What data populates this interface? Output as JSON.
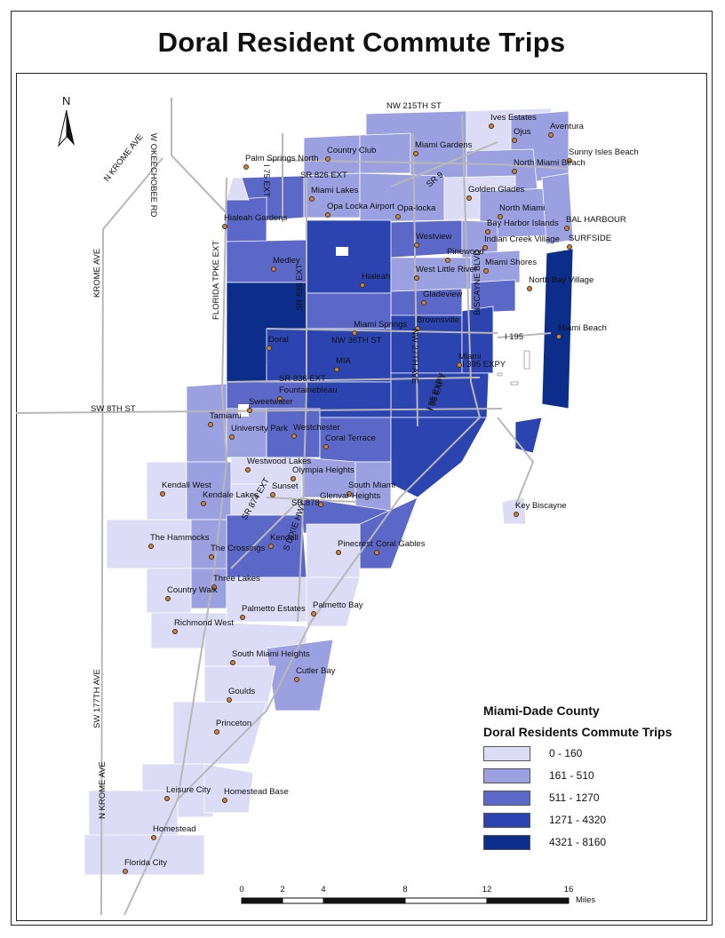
{
  "title": "Doral Resident Commute Trips",
  "north_label": "N",
  "legend": {
    "title1": "Miami-Dade County",
    "title2": "Doral Residents Commute Trips",
    "classes": [
      {
        "label": "0 - 160",
        "color": "#dcdcf6"
      },
      {
        "label": "161 - 510",
        "color": "#9aa0e0"
      },
      {
        "label": "511 - 1270",
        "color": "#5c68c8"
      },
      {
        "label": "1271 - 4320",
        "color": "#2b44b0"
      },
      {
        "label": "4321 - 8160",
        "color": "#0c2e8a"
      }
    ]
  },
  "scale_bar": {
    "ticks": [
      "0",
      "2",
      "4",
      "8",
      "12",
      "16"
    ],
    "unit": "Miles"
  },
  "places": [
    "Palm Springs North",
    "Country Club",
    "Miami Gardens",
    "Ives Estates",
    "Ojus",
    "Aventura",
    "Sunny Isles Beach",
    "North Miami Beach",
    "Miami Lakes",
    "Golden Glades",
    "Hialeah Gardens",
    "Opa Locka Airport",
    "Opa-locka",
    "North Miami",
    "BAL HARBOUR",
    "Bay Harbor Islands",
    "Indian Creek Village",
    "SURFSIDE",
    "Westview",
    "Pinewood",
    "Medley",
    "West Little River",
    "Miami Shores",
    "Hialeah",
    "North Bay Village",
    "Gladeview",
    "Miami Springs",
    "Brownsville",
    "Doral",
    "Miami Beach",
    "MIA",
    "Miami",
    "Fountainebleau",
    "Sweetwater",
    "Tamiami",
    "University Park",
    "Westchester",
    "Coral Terrace",
    "Westwood Lakes",
    "Olympia Heights",
    "Kendall West",
    "Kendale Lakes",
    "Sunset",
    "South Miami",
    "Glenvar Heights",
    "Key Biscayne",
    "Kendall",
    "The Hammocks",
    "The Crossings",
    "Pinecrest",
    "Coral Gables",
    "Three Lakes",
    "Country Walk",
    "Palmetto Estates",
    "Palmetto Bay",
    "Richmond West",
    "South Miami Heights",
    "Cutler Bay",
    "Goulds",
    "Princeton",
    "Leisure City",
    "Homestead Base",
    "Homestead",
    "Florida City"
  ],
  "roads": [
    "NW 215TH ST",
    "W OKEECHOBEE RD",
    "N KROME AVE",
    "KROME AVE",
    "SR 826 EXT",
    "I 75 EXT",
    "SR 9",
    "FLORIDA TPKE EXT",
    "SR 826 EXT",
    "NW 36TH ST",
    "NW 27TH AVE",
    "BISCAYNE BLVD",
    "I 195",
    "I 95 EXPY",
    "I 395 EXPY",
    "SR 836 EXT",
    "SW 8TH ST",
    "I 95 EXPY",
    "SR 874 EXT",
    "SR 878",
    "S DIXIE HWY",
    "SW 177TH AVE",
    "N KROME AVE"
  ]
}
